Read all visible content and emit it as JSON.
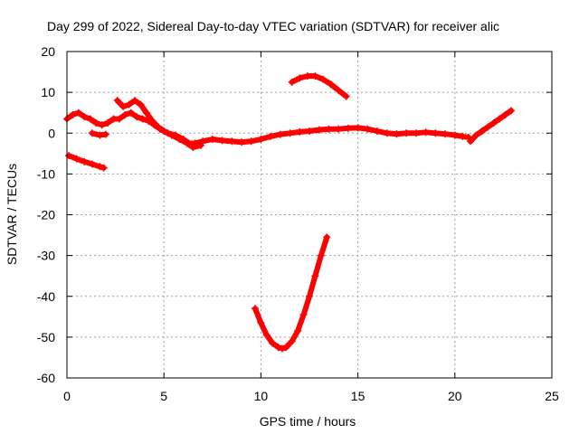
{
  "chart_data": {
    "type": "scatter",
    "title": "Day 299 of 2022, Sidereal Day-to-day VTEC variation (SDTVAR) for receiver alic",
    "xlabel": "GPS time / hours",
    "ylabel": "SDTVAR / TECUs",
    "xlim": [
      0,
      25
    ],
    "ylim": [
      -60,
      20
    ],
    "xticks": [
      0,
      5,
      10,
      15,
      20,
      25
    ],
    "yticks": [
      -60,
      -50,
      -40,
      -30,
      -20,
      -10,
      0,
      10,
      20
    ],
    "grid": true,
    "legend": "none",
    "marker_color": "#ff0000",
    "series": [
      {
        "name": "main",
        "points": [
          [
            0.0,
            3.5
          ],
          [
            0.3,
            4.5
          ],
          [
            0.6,
            5.0
          ],
          [
            0.9,
            4.0
          ],
          [
            1.2,
            3.5
          ],
          [
            1.5,
            2.5
          ],
          [
            1.8,
            2.0
          ],
          [
            2.1,
            2.5
          ],
          [
            2.4,
            3.5
          ],
          [
            2.7,
            3.5
          ],
          [
            3.0,
            4.5
          ],
          [
            3.3,
            5.0
          ],
          [
            3.6,
            4.0
          ],
          [
            3.9,
            3.5
          ],
          [
            4.2,
            3.0
          ],
          [
            4.5,
            2.0
          ],
          [
            4.8,
            1.0
          ],
          [
            5.2,
            0.0
          ],
          [
            5.6,
            -0.5
          ],
          [
            6.0,
            -1.5
          ],
          [
            6.3,
            -2.5
          ],
          [
            6.6,
            -2.5
          ],
          [
            7.0,
            -2.0
          ],
          [
            7.5,
            -1.5
          ],
          [
            8.0,
            -1.8
          ],
          [
            8.5,
            -2.0
          ],
          [
            9.0,
            -2.2
          ],
          [
            9.5,
            -2.0
          ],
          [
            10.0,
            -1.5
          ],
          [
            10.5,
            -0.8
          ],
          [
            11.0,
            -0.3
          ],
          [
            11.5,
            0.0
          ],
          [
            12.0,
            0.3
          ],
          [
            12.5,
            0.5
          ],
          [
            13.0,
            0.8
          ],
          [
            13.5,
            1.0
          ],
          [
            14.0,
            1.0
          ],
          [
            14.5,
            1.2
          ],
          [
            15.0,
            1.3
          ],
          [
            15.5,
            1.0
          ],
          [
            16.0,
            0.5
          ],
          [
            16.5,
            0.0
          ],
          [
            17.0,
            -0.2
          ],
          [
            17.5,
            0.0
          ],
          [
            18.0,
            0.0
          ],
          [
            18.5,
            0.2
          ],
          [
            19.0,
            0.0
          ],
          [
            19.5,
            -0.2
          ],
          [
            20.0,
            -0.5
          ],
          [
            20.4,
            -0.8
          ],
          [
            20.7,
            -1.0
          ]
        ]
      },
      {
        "name": "late-rise",
        "points": [
          [
            20.8,
            -2.0
          ],
          [
            21.1,
            -0.5
          ],
          [
            21.4,
            0.5
          ],
          [
            21.7,
            1.5
          ],
          [
            22.0,
            2.5
          ],
          [
            22.3,
            3.5
          ],
          [
            22.6,
            4.5
          ],
          [
            22.9,
            5.5
          ]
        ]
      },
      {
        "name": "early-drop",
        "points": [
          [
            0.1,
            -5.5
          ],
          [
            0.5,
            -6.3
          ],
          [
            0.9,
            -7.0
          ],
          [
            1.3,
            -7.6
          ],
          [
            1.7,
            -8.2
          ],
          [
            1.9,
            -8.5
          ]
        ]
      },
      {
        "name": "early-spike",
        "points": [
          [
            1.3,
            0.0
          ],
          [
            1.7,
            -0.5
          ],
          [
            2.0,
            -0.3
          ]
        ]
      },
      {
        "name": "hump",
        "points": [
          [
            2.6,
            8.0
          ],
          [
            2.9,
            6.5
          ],
          [
            3.2,
            7.0
          ],
          [
            3.5,
            8.0
          ],
          [
            3.8,
            7.0
          ],
          [
            4.1,
            5.0
          ],
          [
            4.4,
            3.0
          ],
          [
            4.7,
            1.5
          ],
          [
            5.0,
            0.5
          ],
          [
            5.4,
            -0.5
          ],
          [
            5.8,
            -1.5
          ],
          [
            6.2,
            -2.5
          ],
          [
            6.5,
            -3.5
          ],
          [
            6.9,
            -3.0
          ]
        ]
      },
      {
        "name": "arc",
        "points": [
          [
            11.6,
            12.5
          ],
          [
            12.0,
            13.5
          ],
          [
            12.4,
            14.0
          ],
          [
            12.8,
            14.0
          ],
          [
            13.2,
            13.2
          ],
          [
            13.6,
            12.0
          ],
          [
            14.0,
            10.5
          ],
          [
            14.4,
            9.0
          ]
        ]
      },
      {
        "name": "dip",
        "points": [
          [
            9.7,
            -43.0
          ],
          [
            10.0,
            -46.5
          ],
          [
            10.3,
            -49.5
          ],
          [
            10.6,
            -51.5
          ],
          [
            10.9,
            -52.5
          ],
          [
            11.1,
            -52.8
          ],
          [
            11.3,
            -52.5
          ],
          [
            11.6,
            -51.0
          ],
          [
            11.9,
            -48.5
          ],
          [
            12.2,
            -44.5
          ],
          [
            12.5,
            -40.0
          ],
          [
            12.8,
            -35.0
          ],
          [
            13.1,
            -30.0
          ],
          [
            13.4,
            -25.5
          ]
        ]
      }
    ]
  }
}
